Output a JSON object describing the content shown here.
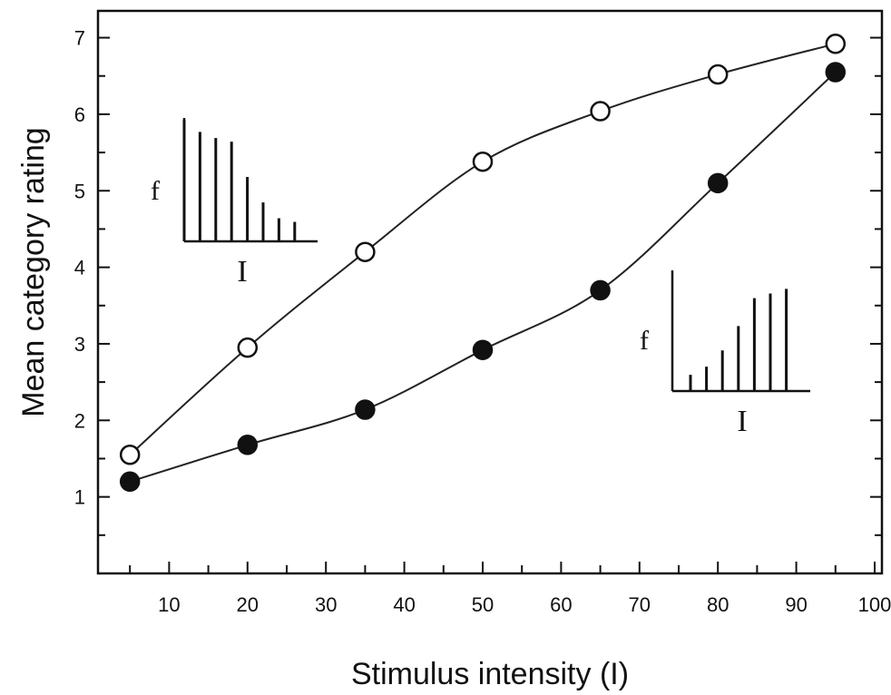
{
  "chart_data": {
    "type": "scatter",
    "title": "",
    "xlabel": "Stimulus intensity (I)",
    "ylabel": "Mean category rating",
    "xlim": [
      0,
      100
    ],
    "ylim": [
      0,
      7.35
    ],
    "x_ticks": [
      10,
      20,
      30,
      40,
      50,
      60,
      70,
      80,
      90,
      100
    ],
    "y_ticks": [
      1,
      2,
      3,
      4,
      5,
      6,
      7
    ],
    "grid": false,
    "legend": "none",
    "series": [
      {
        "marker": "open-circle",
        "color": "#111111",
        "x": [
          5,
          20,
          35,
          50,
          65,
          80,
          95
        ],
        "y": [
          1.55,
          2.95,
          4.2,
          5.38,
          6.04,
          6.52,
          6.92
        ]
      },
      {
        "marker": "filled-circle",
        "color": "#111111",
        "x": [
          5,
          20,
          35,
          50,
          65,
          80,
          95
        ],
        "y": [
          1.2,
          1.68,
          2.14,
          2.92,
          3.7,
          5.1,
          6.55
        ]
      }
    ],
    "insets": [
      {
        "position": "upper-left",
        "ylabel": "f",
        "xlabel": "I",
        "shape": "negatively skewed",
        "bar_heights": [
          1.0,
          0.9,
          0.85,
          0.82,
          0.53,
          0.32,
          0.19,
          0.16
        ]
      },
      {
        "position": "lower-right",
        "ylabel": "f",
        "xlabel": "I",
        "shape": "positively skewed",
        "bar_heights": [
          0.14,
          0.21,
          0.35,
          0.56,
          0.8,
          0.84,
          0.88
        ]
      }
    ]
  }
}
